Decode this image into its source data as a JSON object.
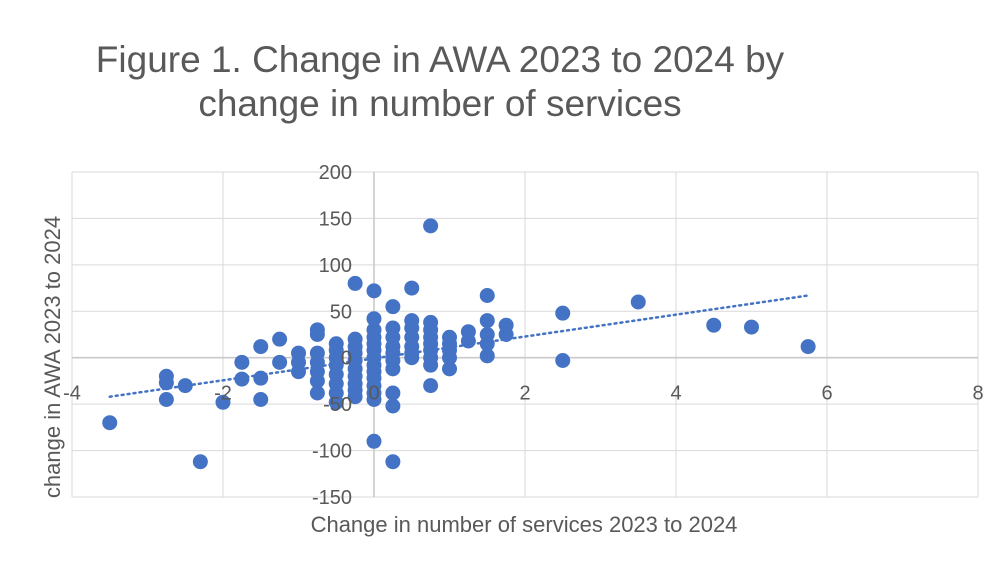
{
  "chart_data": {
    "type": "scatter",
    "title_lines": [
      "Figure 1. Change in  AWA 2023 to 2024 by",
      "change in number of services"
    ],
    "xlabel": "Change in number of services 2023 to 2024",
    "ylabel": "change in AWA  2023 to  2024",
    "xlim": [
      -4,
      8
    ],
    "ylim": [
      -150,
      200
    ],
    "x_ticks": [
      "-4",
      "-2",
      "0",
      "2",
      "4",
      "6",
      "8"
    ],
    "y_ticks": [
      "200",
      "150",
      "100",
      "50",
      "0",
      "-50",
      "-100",
      "-150"
    ],
    "grid": true,
    "trendline": {
      "style": "dotted linear",
      "x": [
        -3.5,
        5.75
      ],
      "y": [
        -42,
        67
      ]
    },
    "series": [
      {
        "color": "#4472c4",
        "points": [
          [
            -3.5,
            -70
          ],
          [
            -2.75,
            -20
          ],
          [
            -2.75,
            -27
          ],
          [
            -2.75,
            -45
          ],
          [
            -2.5,
            -30
          ],
          [
            -2.3,
            -112
          ],
          [
            -2,
            -48
          ],
          [
            -1.75,
            -5
          ],
          [
            -1.75,
            -23
          ],
          [
            -1.5,
            12
          ],
          [
            -1.5,
            -22
          ],
          [
            -1.5,
            -45
          ],
          [
            -1.25,
            20
          ],
          [
            -1.25,
            -5
          ],
          [
            -1,
            5
          ],
          [
            -1,
            -5
          ],
          [
            -1,
            -15
          ],
          [
            -0.75,
            30
          ],
          [
            -0.75,
            25
          ],
          [
            -0.75,
            5
          ],
          [
            -0.75,
            -5
          ],
          [
            -0.75,
            -15
          ],
          [
            -0.75,
            -25
          ],
          [
            -0.75,
            -38
          ],
          [
            -0.5,
            15
          ],
          [
            -0.5,
            8
          ],
          [
            -0.5,
            0
          ],
          [
            -0.5,
            -8
          ],
          [
            -0.5,
            -18
          ],
          [
            -0.5,
            -28
          ],
          [
            -0.5,
            -38
          ],
          [
            -0.5,
            -48
          ],
          [
            -0.25,
            80
          ],
          [
            -0.25,
            20
          ],
          [
            -0.25,
            12
          ],
          [
            -0.25,
            5
          ],
          [
            -0.25,
            -3
          ],
          [
            -0.25,
            -12
          ],
          [
            -0.25,
            -20
          ],
          [
            -0.25,
            -28
          ],
          [
            -0.25,
            -35
          ],
          [
            -0.25,
            -42
          ],
          [
            0,
            72
          ],
          [
            0,
            42
          ],
          [
            0,
            30
          ],
          [
            0,
            22
          ],
          [
            0,
            15
          ],
          [
            0,
            8
          ],
          [
            0,
            0
          ],
          [
            0,
            -8
          ],
          [
            0,
            -15
          ],
          [
            0,
            -22
          ],
          [
            0,
            -30
          ],
          [
            0,
            -38
          ],
          [
            0,
            -45
          ],
          [
            0,
            -90
          ],
          [
            0.25,
            55
          ],
          [
            0.25,
            32
          ],
          [
            0.25,
            22
          ],
          [
            0.25,
            12
          ],
          [
            0.25,
            5
          ],
          [
            0.25,
            -3
          ],
          [
            0.25,
            -12
          ],
          [
            0.25,
            -38
          ],
          [
            0.25,
            -52
          ],
          [
            0.25,
            -112
          ],
          [
            0.5,
            75
          ],
          [
            0.5,
            40
          ],
          [
            0.5,
            32
          ],
          [
            0.5,
            22
          ],
          [
            0.5,
            12
          ],
          [
            0.5,
            5
          ],
          [
            0.5,
            0
          ],
          [
            0.75,
            142
          ],
          [
            0.75,
            38
          ],
          [
            0.75,
            30
          ],
          [
            0.75,
            22
          ],
          [
            0.75,
            15
          ],
          [
            0.75,
            8
          ],
          [
            0.75,
            0
          ],
          [
            0.75,
            -8
          ],
          [
            0.75,
            -30
          ],
          [
            1,
            22
          ],
          [
            1,
            15
          ],
          [
            1,
            8
          ],
          [
            1,
            0
          ],
          [
            1,
            -12
          ],
          [
            1.25,
            28
          ],
          [
            1.25,
            18
          ],
          [
            1.5,
            67
          ],
          [
            1.5,
            40
          ],
          [
            1.5,
            25
          ],
          [
            1.5,
            15
          ],
          [
            1.5,
            2
          ],
          [
            1.75,
            35
          ],
          [
            1.75,
            25
          ],
          [
            2.5,
            48
          ],
          [
            2.5,
            -3
          ],
          [
            3.5,
            60
          ],
          [
            4.5,
            35
          ],
          [
            5,
            33
          ],
          [
            5.75,
            12
          ]
        ]
      }
    ]
  }
}
